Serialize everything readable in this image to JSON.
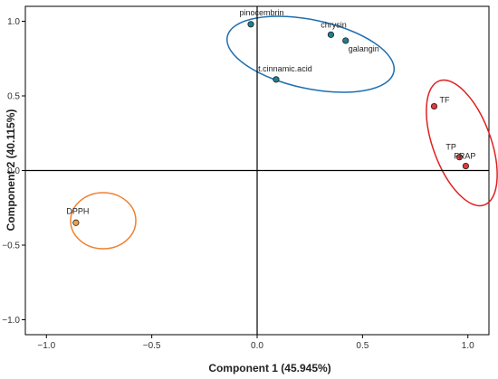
{
  "chart_data": {
    "type": "scatter",
    "title": "",
    "xlabel": "Component 1 (45.945%)",
    "ylabel": "Component 2 (40.115%)",
    "xlim": [
      -1.1,
      1.1
    ],
    "ylim": [
      -1.1,
      1.1
    ],
    "x_ticks": [
      -1.0,
      -0.5,
      0.0,
      0.5,
      1.0
    ],
    "x_tick_labels": [
      "−1.0",
      "−0.5",
      "0.0",
      "0.5",
      "1.0"
    ],
    "y_ticks": [
      1.0,
      0.5,
      0.0,
      -0.5,
      -1.0
    ],
    "y_tick_labels": [
      "1.0",
      "0.5",
      "0.0",
      "−0.5",
      "−1.0"
    ],
    "reference_lines": {
      "x": 0,
      "y": 0
    },
    "grid": false,
    "points": [
      {
        "label": "pinocembrin",
        "x": -0.03,
        "y": 0.98,
        "color": "#1f7f8f"
      },
      {
        "label": "chrysin",
        "x": 0.35,
        "y": 0.91,
        "color": "#1f7f8f"
      },
      {
        "label": "galangin",
        "x": 0.42,
        "y": 0.87,
        "color": "#1f7f8f"
      },
      {
        "label": "t.cinnamic.acid",
        "x": 0.09,
        "y": 0.61,
        "color": "#1f7f8f"
      },
      {
        "label": "TF",
        "x": 0.84,
        "y": 0.43,
        "color": "#e03a3a"
      },
      {
        "label": "TP",
        "x": 0.96,
        "y": 0.09,
        "color": "#e03a3a"
      },
      {
        "label": "FRAP",
        "x": 0.99,
        "y": 0.03,
        "color": "#e03a3a"
      },
      {
        "label": "DPPH",
        "x": -0.86,
        "y": -0.35,
        "color": "#f0a040"
      }
    ],
    "groups": [
      {
        "members": [
          "pinocembrin",
          "chrysin",
          "galangin",
          "t.cinnamic.acid"
        ],
        "color": "#1f6fb0"
      },
      {
        "members": [
          "TF",
          "TP",
          "FRAP"
        ],
        "color": "#e02020"
      },
      {
        "members": [
          "DPPH"
        ],
        "color": "#f08030"
      }
    ]
  }
}
